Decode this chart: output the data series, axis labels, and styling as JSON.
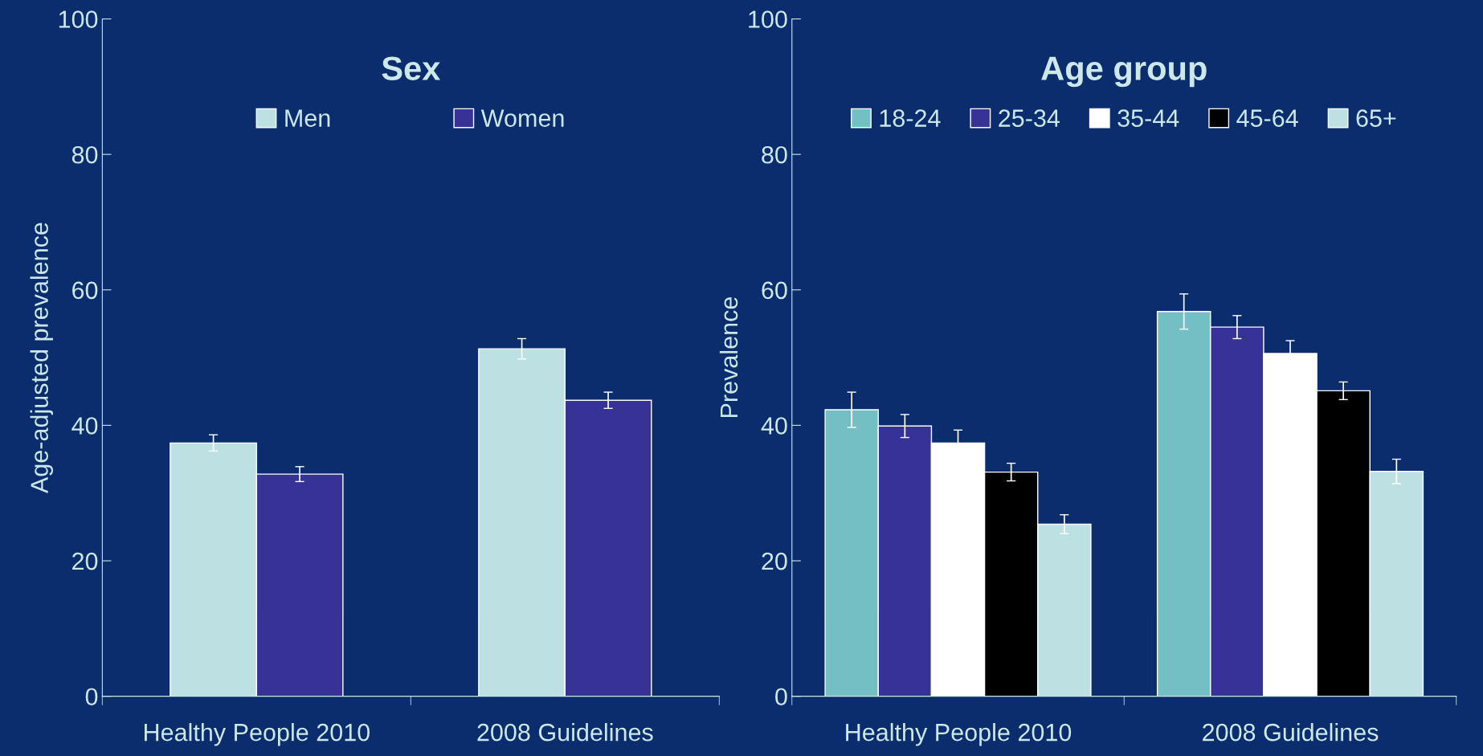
{
  "chart_data": [
    {
      "type": "bar",
      "title": "Sex",
      "ylabel": "Age-adjusted prevalence",
      "categories": [
        "Healthy People 2010",
        "2008 Guidelines"
      ],
      "ylim": [
        0,
        100
      ],
      "yticks": [
        0,
        20,
        40,
        60,
        80,
        100
      ],
      "grid": false,
      "legend": "top",
      "series": [
        {
          "name": "Men",
          "color": "#bde0e3",
          "values": [
            37.4,
            51.3
          ],
          "errors": [
            1.2,
            1.5
          ]
        },
        {
          "name": "Women",
          "color": "#373295",
          "values": [
            32.8,
            43.7
          ],
          "errors": [
            1.1,
            1.2
          ]
        }
      ]
    },
    {
      "type": "bar",
      "title": "Age group",
      "ylabel": "Prevalence",
      "categories": [
        "Healthy People 2010",
        "2008 Guidelines"
      ],
      "ylim": [
        0,
        100
      ],
      "yticks": [
        0,
        20,
        40,
        60,
        80,
        100
      ],
      "grid": false,
      "legend": "top",
      "series": [
        {
          "name": "18-24",
          "color": "#74bfc4",
          "values": [
            42.3,
            56.8
          ],
          "errors": [
            2.6,
            2.6
          ]
        },
        {
          "name": "25-34",
          "color": "#373295",
          "values": [
            39.9,
            54.5
          ],
          "errors": [
            1.7,
            1.7
          ]
        },
        {
          "name": "35-44",
          "color": "#ffffff",
          "values": [
            37.4,
            50.6
          ],
          "errors": [
            1.9,
            1.9
          ]
        },
        {
          "name": "45-64",
          "color": "#000000",
          "values": [
            33.1,
            45.1
          ],
          "errors": [
            1.3,
            1.3
          ]
        },
        {
          "name": "65+",
          "color": "#bde0e3",
          "values": [
            25.4,
            33.2
          ],
          "errors": [
            1.4,
            1.8
          ]
        }
      ]
    }
  ]
}
